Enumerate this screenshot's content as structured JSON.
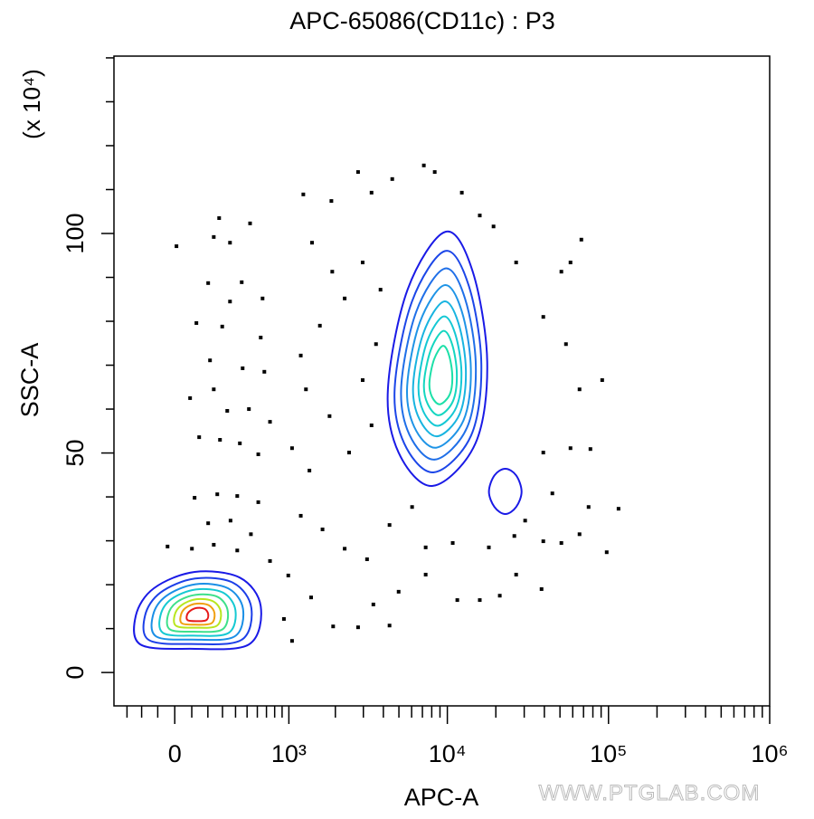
{
  "chart_data": {
    "type": "contour",
    "title": "APC-65086(CD11c) : P3",
    "x_label": "APC-A",
    "y_label": "SSC-A",
    "y_unit_label": "(x 10⁴)",
    "watermark": "WWW.PTGLAB.COM",
    "xscale": "logicle",
    "xlim": [
      -400,
      1000000
    ],
    "xticks": [
      0,
      {
        "value": 1000,
        "label": "10³"
      },
      {
        "value": 10000,
        "label": "10⁴"
      },
      {
        "value": 100000,
        "label": "10⁵"
      },
      {
        "value": 1000000,
        "label": "10⁶"
      }
    ],
    "xminorticks": [
      -300,
      -200,
      -100,
      100,
      200,
      300,
      400,
      500,
      600,
      700,
      800,
      900,
      2000,
      3000,
      4000,
      5000,
      6000,
      7000,
      8000,
      9000,
      20000,
      30000,
      40000,
      50000,
      60000,
      70000,
      80000,
      90000,
      200000,
      300000,
      400000,
      500000,
      600000,
      700000,
      800000,
      900000
    ],
    "ylim": [
      -7.6,
      140.4
    ],
    "yticks": [
      0,
      50,
      100
    ],
    "yminorticks": [
      10,
      20,
      30,
      40,
      60,
      70,
      80,
      90,
      110,
      120,
      130,
      140
    ],
    "points": {
      "color": "#000000",
      "x": [
        10,
        239,
        276,
        356,
        528,
        202,
        128,
        298,
        356,
        452,
        656,
        636,
        214,
        460,
        676,
        90,
        239,
        335,
        517,
        742,
        145,
        282,
        436,
        610,
        117,
        263,
        414,
        610,
        202,
        360,
        536,
        -42,
        101,
        239,
        414,
        742,
        991,
        926,
        1050,
        1400,
        1936,
        2780,
        3465,
        4370,
        4980,
        7335,
        11530,
        15900,
        21160,
        26730,
        38420,
        1199,
        1657,
        2290,
        3164,
        4370,
        6039,
        7335,
        10800,
        18100,
        26050,
        39400,
        51000,
        66100,
        97470,
        75240,
        115400,
        44840,
        30400,
        39400,
        58100,
        77230,
        91390,
        66100,
        54470,
        39400,
        51000,
        58100,
        67860,
        26730,
        19350,
        15900,
        12300,
        8350,
        7145,
        4545,
        3375,
        2780,
        1887,
        1246,
        1419,
        1911,
        2290,
        1594,
        1199,
        1296,
        1837,
        1050,
        1365,
        2442,
        3375,
        2970,
        3600,
        3840,
        2970
      ],
      "y": [
        97.1,
        99.2,
        103.5,
        97.9,
        102.3,
        88.7,
        79.6,
        78.8,
        84.5,
        88.9,
        85.2,
        76.3,
        71.1,
        69.3,
        68.5,
        62.5,
        64.5,
        59.6,
        60.0,
        57.1,
        53.6,
        53.0,
        52.2,
        49.7,
        39.8,
        40.6,
        40.2,
        38.8,
        34.0,
        34.6,
        31.5,
        28.7,
        28.2,
        29.1,
        27.8,
        25.4,
        22.1,
        12.2,
        7.2,
        17.1,
        10.5,
        10.3,
        15.5,
        10.7,
        18.4,
        22.3,
        16.5,
        16.5,
        17.5,
        22.3,
        19.0,
        35.7,
        32.6,
        28.2,
        25.8,
        33.6,
        37.7,
        28.5,
        29.5,
        28.5,
        31.1,
        29.9,
        29.5,
        31.5,
        27.4,
        37.7,
        37.3,
        40.8,
        34.6,
        50.1,
        51.1,
        50.9,
        66.6,
        64.5,
        74.8,
        81.0,
        91.3,
        93.4,
        98.6,
        93.4,
        101.6,
        104.1,
        109.3,
        114.0,
        115.5,
        112.4,
        109.3,
        114.0,
        107.4,
        108.9,
        97.9,
        91.3,
        85.2,
        79.0,
        72.2,
        64.5,
        58.4,
        51.1,
        46.0,
        50.1,
        56.3,
        66.6,
        74.8,
        87.2,
        93.4
      ]
    },
    "contours": [
      {
        "color": "#1a1ae6",
        "x": [
          9750,
          14370,
          17680,
          14940,
          8130,
          4980,
          4270,
          5660
        ],
        "y": [
          100.4,
          91.3,
          70.7,
          52.2,
          42.5,
          50.1,
          64.5,
          87.2
        ]
      },
      {
        "color": "#1c46e8",
        "x": [
          9680,
          13580,
          16260,
          14040,
          8270,
          5390,
          4710,
          6030
        ],
        "y": [
          96.0,
          88.1,
          70.2,
          54.0,
          45.6,
          52.2,
          64.8,
          84.5
        ]
      },
      {
        "color": "#1f6fe8",
        "x": [
          9620,
          12870,
          15030,
          13250,
          8400,
          5810,
          5170,
          6400
        ],
        "y": [
          92.0,
          85.2,
          69.7,
          55.8,
          48.5,
          54.2,
          65.1,
          82.1
        ]
      },
      {
        "color": "#1f94e6",
        "x": [
          9560,
          12270,
          14000,
          12580,
          8520,
          6220,
          5630,
          6760
        ],
        "y": [
          88.2,
          82.4,
          69.2,
          57.4,
          51.2,
          56.0,
          65.3,
          79.8
        ]
      },
      {
        "color": "#18b4e0",
        "x": [
          9510,
          11690,
          13040,
          11930,
          8650,
          6670,
          6130,
          7130
        ],
        "y": [
          84.5,
          79.7,
          68.8,
          58.9,
          53.8,
          57.9,
          65.5,
          77.5
        ]
      },
      {
        "color": "#14c8d4",
        "x": [
          9460,
          11180,
          12230,
          11370,
          8760,
          7090,
          6630,
          7500
        ],
        "y": [
          81.1,
          77.2,
          68.4,
          60.4,
          56.2,
          59.5,
          65.7,
          75.5
        ]
      },
      {
        "color": "#14d6c0",
        "x": [
          9410,
          10700,
          11460,
          10840,
          8870,
          7540,
          7160,
          7880
        ],
        "y": [
          77.8,
          74.8,
          68.0,
          61.8,
          58.6,
          61.2,
          65.9,
          73.4
        ]
      },
      {
        "color": "#1ce0a8",
        "x": [
          9360,
          10240,
          10740,
          10340,
          8990,
          8030,
          7740,
          8270
        ],
        "y": [
          74.4,
          72.3,
          67.5,
          63.3,
          61.1,
          62.8,
          66.1,
          71.3
        ]
      },
      {
        "color": "#1a1ae6",
        "x": [
          22900,
          26730,
          28900,
          26730,
          22900,
          19610,
          18130,
          19610
        ],
        "y": [
          46.4,
          44.9,
          41.2,
          37.7,
          36.1,
          37.7,
          41.2,
          44.9
        ]
      },
      {
        "color": "#1a1ae6",
        "x": [
          117.5,
          436,
          636,
          517,
          90,
          -208,
          -238,
          -123
        ],
        "y": [
          22.9,
          21.6,
          15.1,
          6.4,
          5.4,
          6.4,
          13.0,
          19.2
        ]
      },
      {
        "color": "#1c3fe8",
        "x": [
          120,
          384,
          540,
          448,
          97,
          -154,
          -178,
          -84
        ],
        "y": [
          21.4,
          20.4,
          14.7,
          7.4,
          6.5,
          7.4,
          13.0,
          18.2
        ]
      },
      {
        "color": "#1a8fe6",
        "x": [
          122,
          340,
          463,
          392,
          102,
          -109,
          -129,
          -51
        ],
        "y": [
          20.1,
          19.2,
          14.5,
          8.2,
          7.5,
          8.2,
          13.0,
          17.4
        ]
      },
      {
        "color": "#15c9d2",
        "x": [
          124,
          303,
          399,
          344,
          108,
          -68,
          -84,
          -20
        ],
        "y": [
          18.9,
          18.2,
          14.2,
          9.0,
          8.4,
          9.0,
          13.0,
          16.7
        ]
      },
      {
        "color": "#3ee08a",
        "x": [
          126,
          267,
          339,
          298,
          113,
          -27,
          -40,
          11
        ],
        "y": [
          17.7,
          17.2,
          14.0,
          9.8,
          9.3,
          9.8,
          13.0,
          16.0
        ]
      },
      {
        "color": "#b8e61e",
        "x": [
          128,
          235,
          288,
          258,
          117.5,
          9,
          -1,
          38
        ],
        "y": [
          16.7,
          16.2,
          13.8,
          10.6,
          10.2,
          10.6,
          13.0,
          15.3
        ]
      },
      {
        "color": "#f0a010",
        "x": [
          130,
          207,
          244,
          223,
          122,
          42,
          35,
          63
        ],
        "y": [
          15.7,
          15.3,
          13.5,
          11.2,
          10.9,
          11.2,
          13.0,
          14.7
        ]
      },
      {
        "color": "#e61a1a",
        "x": [
          131,
          179,
          202,
          189,
          126,
          76,
          71,
          89
        ],
        "y": [
          14.7,
          14.5,
          13.3,
          11.9,
          11.7,
          11.9,
          13.0,
          14.0
        ]
      }
    ]
  }
}
